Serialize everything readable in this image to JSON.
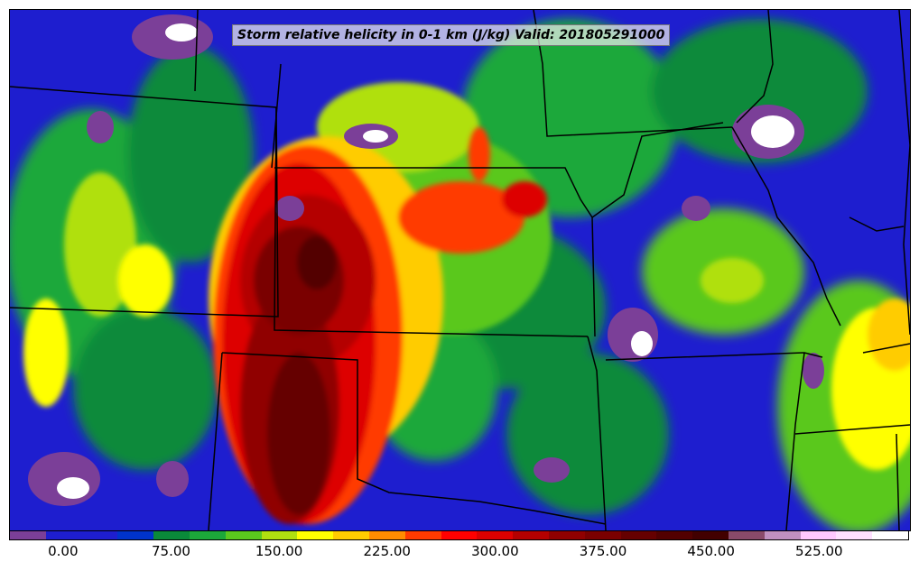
{
  "title": "Storm relative helicity in 0-1 km (J/kg) Valid: 201805291000",
  "colorbar": {
    "colors": [
      "#7b3f98",
      "#1e1ecf",
      "#1e1ecf",
      "#0033cc",
      "#0a8a3a",
      "#1ca83a",
      "#5ac81e",
      "#b0e010",
      "#ffff00",
      "#ffcc00",
      "#ff8c00",
      "#ff3a00",
      "#ff0000",
      "#dd0000",
      "#b40000",
      "#900000",
      "#7a0000",
      "#650000",
      "#520000",
      "#420000",
      "#8a4a6a",
      "#c090c0",
      "#ffc8ff",
      "#ffe0ff",
      "#ffffff"
    ],
    "tick_labels": [
      "0.00",
      "75.00",
      "150.00",
      "225.00",
      "300.00",
      "375.00",
      "450.00",
      "525.00"
    ],
    "tick_values": [
      0,
      75,
      150,
      225,
      300,
      375,
      450,
      525
    ],
    "range": [
      -37.5,
      587.5
    ]
  }
}
